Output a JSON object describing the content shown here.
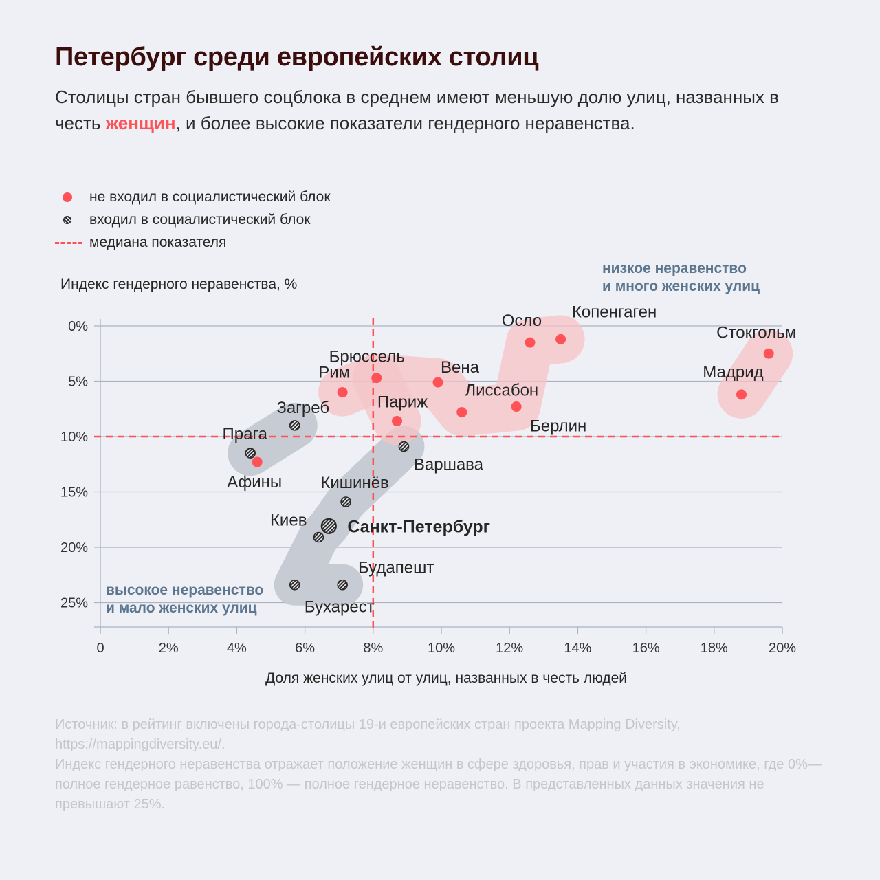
{
  "header": {
    "title": "Петербург среди европейских столиц",
    "subtitle_before": "Столицы стран бывшего соцблока в среднем имеют меньшую долю улиц, названных в честь ",
    "subtitle_highlight": "женщин",
    "subtitle_after": ", и более высокие показатели гендерного неравенства."
  },
  "legend": [
    {
      "icon": "red-dot-icon",
      "label": "не входил в социалистический блок"
    },
    {
      "icon": "hatched-dot-icon",
      "label": "входил в социалистический блок"
    },
    {
      "icon": "dashed-line-icon",
      "label": "медиана показателя"
    }
  ],
  "quadrant_labels": {
    "top_right": [
      "низкое неравенство",
      "и много женских улиц"
    ],
    "bottom_left": [
      "высокое неравенство",
      "и мало женских улиц"
    ]
  },
  "footer": [
    "Источник: в рейтинг включены города-столицы 19-и европейских стран проекта Mapping Diversity, https://mappingdiversity.eu/.",
    "Индекс гендерного неравенства отражает положение женщин в сфере здоровья, прав и участия в экономике, где 0%— полное гендерное равенство, 100% — полное гендерное неравенство. В представленных данных значения не превышают 25%."
  ],
  "colors": {
    "non_socialist": "#ff5257",
    "non_socialist_blob": "#f6c3c6",
    "socialist": "#2a2a2a",
    "socialist_blob": "#c7ccd4",
    "median": "#ff5257",
    "grid": "#a9b3c2",
    "quadrant_text": "#5d7690"
  },
  "chart_data": {
    "type": "scatter",
    "title": "Петербург среди европейских столиц",
    "xlabel": "Доля женских улиц от улиц, названных в честь людей",
    "ylabel": "Индекс гендерного неравенства, %",
    "xlim": [
      0,
      20
    ],
    "ylim": [
      0,
      27.5
    ],
    "y_inverted": true,
    "x_ticks": [
      0,
      2,
      4,
      6,
      8,
      10,
      12,
      14,
      16,
      18,
      20
    ],
    "x_tick_labels": [
      "0",
      "2%",
      "4%",
      "6%",
      "8%",
      "10%",
      "12%",
      "14%",
      "16%",
      "18%",
      "20%"
    ],
    "y_ticks": [
      0,
      5,
      10,
      15,
      20,
      25
    ],
    "y_tick_labels": [
      "0%",
      "5%",
      "10%",
      "15%",
      "20%",
      "25%"
    ],
    "grid": "horizontal",
    "median": {
      "x": 8.0,
      "y": 10.0
    },
    "series": [
      {
        "name": "не входил в социалистический блок",
        "points": [
          {
            "city": "Осло",
            "x": 12.6,
            "y": 1.5
          },
          {
            "city": "Копенгаген",
            "x": 13.5,
            "y": 1.2
          },
          {
            "city": "Стокгольм",
            "x": 19.6,
            "y": 2.5
          },
          {
            "city": "Мадрид",
            "x": 18.8,
            "y": 6.2
          },
          {
            "city": "Брюссель",
            "x": 8.1,
            "y": 4.7
          },
          {
            "city": "Вена",
            "x": 9.9,
            "y": 5.1
          },
          {
            "city": "Рим",
            "x": 7.1,
            "y": 6.0
          },
          {
            "city": "Лиссабон",
            "x": 10.6,
            "y": 7.8
          },
          {
            "city": "Берлин",
            "x": 12.2,
            "y": 7.3
          },
          {
            "city": "Париж",
            "x": 8.7,
            "y": 8.6
          },
          {
            "city": "Афины",
            "x": 4.6,
            "y": 12.3
          }
        ]
      },
      {
        "name": "входил в социалистический блок",
        "points": [
          {
            "city": "Загреб",
            "x": 5.7,
            "y": 9.0
          },
          {
            "city": "Прага",
            "x": 4.4,
            "y": 11.5
          },
          {
            "city": "Варшава",
            "x": 8.9,
            "y": 10.9
          },
          {
            "city": "Кишинёв",
            "x": 7.2,
            "y": 15.9
          },
          {
            "city": "Санкт-Петербург",
            "x": 6.7,
            "y": 18.1,
            "highlight": true
          },
          {
            "city": "Киев",
            "x": 6.4,
            "y": 19.1
          },
          {
            "city": "Бухарест",
            "x": 5.7,
            "y": 23.4
          },
          {
            "city": "Будапешт",
            "x": 7.1,
            "y": 23.4
          }
        ]
      }
    ]
  }
}
